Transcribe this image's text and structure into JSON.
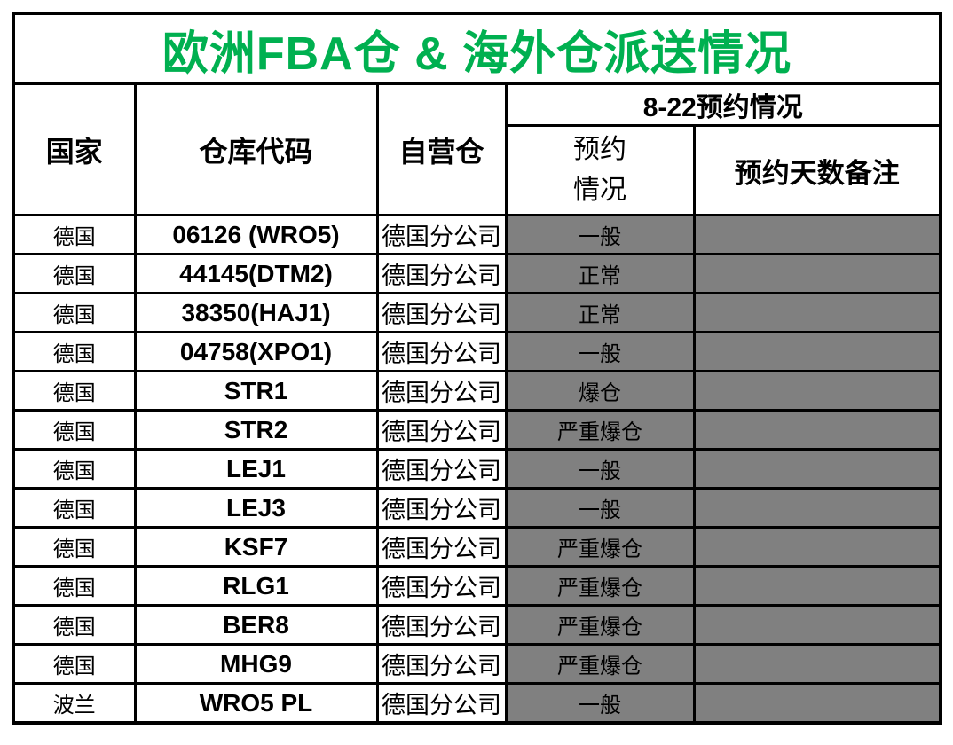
{
  "title": "欧洲FBA仓 & 海外仓派送情况",
  "colors": {
    "title_green": "#00B050",
    "cell_gray": "#808080",
    "border_black": "#000000",
    "background_white": "#FFFFFF"
  },
  "table": {
    "headers": {
      "country": "国家",
      "warehouse_code": "仓库代码",
      "self_warehouse": "自营仓",
      "reservation_group": "8-22预约情况",
      "reservation_status_line1": "预约",
      "reservation_status_line2": "情况",
      "reservation_days_note": "预约天数备注"
    },
    "rows": [
      {
        "country": "德国",
        "code": "06126 (WRO5)",
        "self": "德国分公司",
        "status": "一般",
        "note": ""
      },
      {
        "country": "德国",
        "code": "44145(DTM2)",
        "self": "德国分公司",
        "status": "正常",
        "note": ""
      },
      {
        "country": "德国",
        "code": "38350(HAJ1)",
        "self": "德国分公司",
        "status": "正常",
        "note": ""
      },
      {
        "country": "德国",
        "code": "04758(XPO1)",
        "self": "德国分公司",
        "status": "一般",
        "note": ""
      },
      {
        "country": "德国",
        "code": "STR1",
        "self": "德国分公司",
        "status": "爆仓",
        "note": ""
      },
      {
        "country": "德国",
        "code": "STR2",
        "self": "德国分公司",
        "status": "严重爆仓",
        "note": ""
      },
      {
        "country": "德国",
        "code": "LEJ1",
        "self": "德国分公司",
        "status": "一般",
        "note": ""
      },
      {
        "country": "德国",
        "code": "LEJ3",
        "self": "德国分公司",
        "status": "一般",
        "note": ""
      },
      {
        "country": "德国",
        "code": "KSF7",
        "self": "德国分公司",
        "status": "严重爆仓",
        "note": ""
      },
      {
        "country": "德国",
        "code": "RLG1",
        "self": "德国分公司",
        "status": "严重爆仓",
        "note": ""
      },
      {
        "country": "德国",
        "code": "BER8",
        "self": "德国分公司",
        "status": "严重爆仓",
        "note": ""
      },
      {
        "country": "德国",
        "code": "MHG9",
        "self": "德国分公司",
        "status": "严重爆仓",
        "note": ""
      },
      {
        "country": "波兰",
        "code": "WRO5 PL",
        "self": "德国分公司",
        "status": "一般",
        "note": ""
      }
    ]
  }
}
